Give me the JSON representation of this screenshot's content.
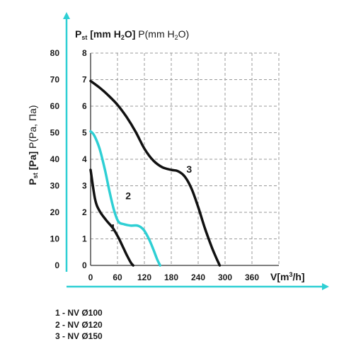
{
  "chart_data": {
    "type": "line",
    "y_title": {
      "main": "P",
      "sub": "st",
      "rest": " [Pa]",
      "alt": " P(Pa, Πa)"
    },
    "y2_title": {
      "main": "P",
      "sub": "st",
      "bold1": " [mm H",
      "sub2": "2",
      "bold2": "O]",
      "light1": " P(mm H",
      "sub3": "2",
      "light2": "O)"
    },
    "x_title": {
      "main": "V[m",
      "sup": "3",
      "rest": "/h]"
    },
    "x_ticks": [
      "0",
      "60",
      "120",
      "180",
      "240",
      "300",
      "360"
    ],
    "y_ticks_pa": [
      "0",
      "10",
      "20",
      "30",
      "40",
      "50",
      "60",
      "70",
      "80"
    ],
    "y_ticks_mm": [
      "0",
      "1",
      "2",
      "3",
      "4",
      "5",
      "6",
      "7",
      "8"
    ],
    "xlim": [
      0,
      360
    ],
    "ylim_mm": [
      0,
      8
    ],
    "grid": true,
    "series": [
      {
        "name": "1",
        "color": "#111111",
        "x": [
          0,
          10,
          20,
          35,
          50,
          62,
          72,
          82,
          90,
          95
        ],
        "y": [
          3.6,
          2.5,
          2.05,
          1.7,
          1.4,
          1.05,
          0.7,
          0.35,
          0.1,
          0
        ]
      },
      {
        "name": "2",
        "color": "#2ecfd4",
        "x": [
          0,
          8,
          20,
          32,
          42,
          52,
          62,
          75,
          90,
          105,
          118,
          130,
          140,
          148,
          155
        ],
        "y": [
          5.05,
          4.9,
          4.4,
          3.6,
          2.8,
          2.1,
          1.65,
          1.55,
          1.5,
          1.5,
          1.35,
          1.0,
          0.6,
          0.25,
          0
        ]
      },
      {
        "name": "3",
        "color": "#111111",
        "x": [
          0,
          20,
          40,
          60,
          80,
          100,
          120,
          140,
          160,
          180,
          195,
          210,
          225,
          240,
          255,
          270,
          280,
          288
        ],
        "y": [
          6.95,
          6.7,
          6.4,
          6.05,
          5.6,
          5.05,
          4.4,
          3.95,
          3.7,
          3.6,
          3.55,
          3.35,
          2.9,
          2.2,
          1.4,
          0.7,
          0.3,
          0
        ]
      }
    ],
    "curve_labels": [
      {
        "text": "1",
        "x": 50,
        "y": 1.3
      },
      {
        "text": "2",
        "x": 84,
        "y": 2.5
      },
      {
        "text": "3",
        "x": 220,
        "y": 3.5
      }
    ]
  },
  "legend": [
    "1 - NV Ø100",
    "2 - NV Ø120",
    "3 - NV Ø150"
  ]
}
